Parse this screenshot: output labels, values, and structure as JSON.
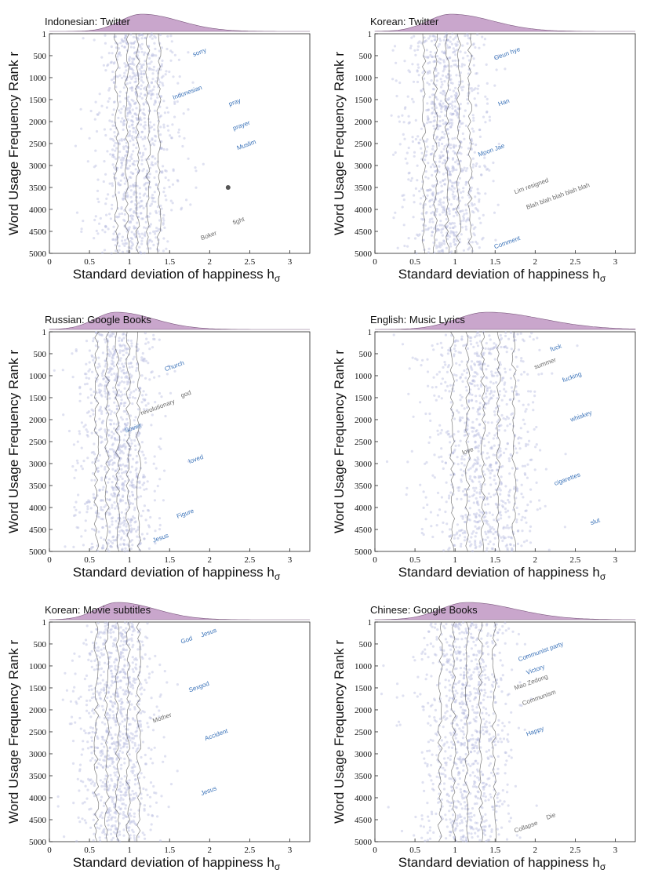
{
  "chart_data": [
    {
      "type": "scatter",
      "title": "Indonesian: Twitter",
      "xlabel": "Standard deviation of happiness h",
      "xlabel_sub": "σ",
      "ylabel": "Word Usage Frequency Rank r",
      "xlim": [
        0,
        3.25
      ],
      "ylim": [
        1,
        5000
      ],
      "xticks": [
        "0",
        "0.5",
        "1",
        "1.5",
        "2",
        "2.5",
        "3"
      ],
      "yticks": [
        "1",
        "500",
        "1000",
        "1500",
        "2000",
        "2500",
        "3000",
        "3500",
        "4000",
        "4500",
        "5000"
      ],
      "center": 1.1,
      "spread": 0.22,
      "density_peak": 1.15,
      "highlight": {
        "x": 2.23,
        "y": 3500
      },
      "words": [
        {
          "text": "Indonesian",
          "x": 1.55,
          "y": 1500,
          "style": "blue"
        },
        {
          "text": "pray",
          "x": 2.25,
          "y": 1650,
          "style": "blue"
        },
        {
          "text": "prayer",
          "x": 2.3,
          "y": 2200,
          "style": "blue"
        },
        {
          "text": "Muslim",
          "x": 2.35,
          "y": 2650,
          "style": "blue"
        },
        {
          "text": "fight",
          "x": 2.3,
          "y": 4350,
          "style": "gray"
        },
        {
          "text": "Boker",
          "x": 1.9,
          "y": 4700,
          "style": "gray"
        },
        {
          "text": "sorry",
          "x": 1.8,
          "y": 520,
          "style": "blue"
        }
      ]
    },
    {
      "type": "scatter",
      "title": "Korean: Twitter",
      "xlabel": "Standard deviation of happiness h",
      "xlabel_sub": "σ",
      "ylabel": "Word Usage Frequency Rank r",
      "xlim": [
        0,
        3.25
      ],
      "ylim": [
        1,
        5000
      ],
      "xticks": [
        "0",
        "0.5",
        "1",
        "1.5",
        "2",
        "2.5",
        "3"
      ],
      "yticks": [
        "1",
        "500",
        "1000",
        "1500",
        "2000",
        "2500",
        "3000",
        "3500",
        "4000",
        "4500",
        "5000"
      ],
      "center": 0.9,
      "spread": 0.24,
      "density_peak": 0.95,
      "words": [
        {
          "text": "Han",
          "x": 1.55,
          "y": 1650,
          "style": "blue"
        },
        {
          "text": "Geun hye",
          "x": 1.5,
          "y": 600,
          "style": "blue"
        },
        {
          "text": "Moon Jae",
          "x": 1.3,
          "y": 2800,
          "style": "blue"
        },
        {
          "text": "Blah blah blah blah blah",
          "x": 1.9,
          "y": 4000,
          "style": "gray"
        },
        {
          "text": "Lim resigned",
          "x": 1.75,
          "y": 3650,
          "style": "gray"
        },
        {
          "text": "Comment",
          "x": 1.5,
          "y": 4900,
          "style": "blue"
        }
      ]
    },
    {
      "type": "scatter",
      "title": "Russian: Google Books",
      "xlabel": "Standard deviation of happiness h",
      "xlabel_sub": "σ",
      "ylabel": "Word Usage Frequency Rank r",
      "xlim": [
        0,
        3.25
      ],
      "ylim": [
        1,
        5000
      ],
      "xticks": [
        "0",
        "0.5",
        "1",
        "1.5",
        "2",
        "2.5",
        "3"
      ],
      "yticks": [
        "1",
        "500",
        "1000",
        "1500",
        "2000",
        "2500",
        "3000",
        "3500",
        "4000",
        "4500",
        "5000"
      ],
      "center": 0.85,
      "spread": 0.22,
      "density_peak": 0.83,
      "words": [
        {
          "text": "Church",
          "x": 1.45,
          "y": 900,
          "style": "blue"
        },
        {
          "text": "god",
          "x": 1.65,
          "y": 1500,
          "style": "gray"
        },
        {
          "text": "revolutionary",
          "x": 1.15,
          "y": 1900,
          "style": "gray"
        },
        {
          "text": "loved",
          "x": 1.75,
          "y": 3000,
          "style": "blue"
        },
        {
          "text": "Figure",
          "x": 1.6,
          "y": 4250,
          "style": "blue"
        },
        {
          "text": "Jesus",
          "x": 1.3,
          "y": 4800,
          "style": "blue"
        },
        {
          "text": "Soviet",
          "x": 0.95,
          "y": 2300,
          "style": "blue"
        }
      ]
    },
    {
      "type": "scatter",
      "title": "English: Music Lyrics",
      "xlabel": "Standard deviation of happiness h",
      "xlabel_sub": "σ",
      "ylabel": "Word Usage Frequency Rank r",
      "xlim": [
        0,
        3.25
      ],
      "ylim": [
        1,
        5000
      ],
      "xticks": [
        "0",
        "0.5",
        "1",
        "1.5",
        "2",
        "2.5",
        "3"
      ],
      "yticks": [
        "1",
        "500",
        "1000",
        "1500",
        "2000",
        "2500",
        "3000",
        "3500",
        "4000",
        "4500",
        "5000"
      ],
      "center": 1.35,
      "spread": 0.32,
      "density_peak": 1.4,
      "words": [
        {
          "text": "fuck",
          "x": 2.2,
          "y": 450,
          "style": "blue"
        },
        {
          "text": "summer",
          "x": 2.0,
          "y": 850,
          "style": "gray"
        },
        {
          "text": "fucking",
          "x": 2.35,
          "y": 1150,
          "style": "blue"
        },
        {
          "text": "whiskey",
          "x": 2.45,
          "y": 2050,
          "style": "blue"
        },
        {
          "text": "cigarettes",
          "x": 2.25,
          "y": 3500,
          "style": "blue"
        },
        {
          "text": "slut",
          "x": 2.7,
          "y": 4400,
          "style": "blue"
        },
        {
          "text": "love",
          "x": 1.1,
          "y": 2800,
          "style": "gray"
        }
      ]
    },
    {
      "type": "scatter",
      "title": "Korean: Movie subtitles",
      "xlabel": "Standard deviation of happiness h",
      "xlabel_sub": "σ",
      "ylabel": "Word Usage Frequency Rank r",
      "xlim": [
        0,
        3.25
      ],
      "ylim": [
        1,
        5000
      ],
      "xticks": [
        "0",
        "0.5",
        "1",
        "1.5",
        "2",
        "2.5",
        "3"
      ],
      "yticks": [
        "1",
        "500",
        "1000",
        "1500",
        "2000",
        "2500",
        "3000",
        "3500",
        "4000",
        "4500",
        "5000"
      ],
      "center": 0.85,
      "spread": 0.22,
      "density_peak": 0.85,
      "words": [
        {
          "text": "God",
          "x": 1.65,
          "y": 500,
          "style": "blue"
        },
        {
          "text": "Jesus",
          "x": 1.9,
          "y": 350,
          "style": "blue"
        },
        {
          "text": "Sexgod",
          "x": 1.75,
          "y": 1600,
          "style": "blue"
        },
        {
          "text": "Accident",
          "x": 1.95,
          "y": 2700,
          "style": "blue"
        },
        {
          "text": "Jesus",
          "x": 1.9,
          "y": 3950,
          "style": "blue"
        },
        {
          "text": "Mother",
          "x": 1.3,
          "y": 2300,
          "style": "gray"
        }
      ]
    },
    {
      "type": "scatter",
      "title": "Chinese: Google Books",
      "xlabel": "Standard deviation of happiness h",
      "xlabel_sub": "σ",
      "ylabel": "Word Usage Frequency Rank r",
      "xlim": [
        0,
        3.25
      ],
      "ylim": [
        1,
        5000
      ],
      "xticks": [
        "0",
        "0.5",
        "1",
        "1.5",
        "2",
        "2.5",
        "3"
      ],
      "yticks": [
        "1",
        "500",
        "1000",
        "1500",
        "2000",
        "2500",
        "3000",
        "3500",
        "4000",
        "4500",
        "5000"
      ],
      "center": 1.15,
      "spread": 0.28,
      "density_peak": 1.15,
      "words": [
        {
          "text": "Communist party",
          "x": 1.8,
          "y": 900,
          "style": "blue"
        },
        {
          "text": "Mao Zedong",
          "x": 1.75,
          "y": 1550,
          "style": "gray"
        },
        {
          "text": "Communism",
          "x": 1.85,
          "y": 1900,
          "style": "gray"
        },
        {
          "text": "Happy",
          "x": 1.9,
          "y": 2600,
          "style": "blue"
        },
        {
          "text": "Die",
          "x": 2.15,
          "y": 4500,
          "style": "gray"
        },
        {
          "text": "Collapse",
          "x": 1.75,
          "y": 4800,
          "style": "gray"
        },
        {
          "text": "Victory",
          "x": 1.9,
          "y": 1200,
          "style": "blue"
        }
      ]
    }
  ]
}
